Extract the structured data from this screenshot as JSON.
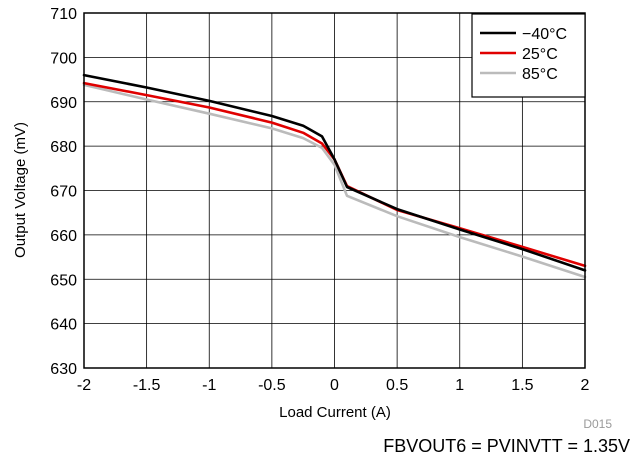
{
  "chart_data": {
    "type": "line",
    "xlabel": "Load Current (A)",
    "ylabel": "Output Voltage (mV)",
    "xlim": [
      -2,
      2
    ],
    "ylim": [
      630,
      710
    ],
    "xticks": [
      -2,
      -1.5,
      -1,
      -0.5,
      0,
      0.5,
      1,
      1.5,
      2
    ],
    "yticks": [
      630,
      640,
      650,
      660,
      670,
      680,
      690,
      700,
      710
    ],
    "xtick_labels": [
      "-2",
      "-1.5",
      "-1",
      "-0.5",
      "0",
      "0.5",
      "1",
      "1.5",
      "2"
    ],
    "ytick_labels": [
      "630",
      "640",
      "650",
      "660",
      "670",
      "680",
      "690",
      "700",
      "710"
    ],
    "grid": true,
    "legend_position": "top-right",
    "series": [
      {
        "name": "−40°C",
        "color": "#000000",
        "x": [
          -2,
          -1.5,
          -1,
          -0.5,
          -0.25,
          -0.1,
          0,
          0.1,
          0.5,
          1,
          1.5,
          2
        ],
        "y": [
          696,
          693.2,
          690.2,
          686.8,
          684.6,
          682.2,
          677,
          670.8,
          665.8,
          661.2,
          656.8,
          652
        ]
      },
      {
        "name": "25°C",
        "color": "#e00000",
        "x": [
          -2,
          -1.5,
          -1,
          -0.5,
          -0.25,
          -0.1,
          0,
          0.1,
          0.5,
          1,
          1.5,
          2
        ],
        "y": [
          694.2,
          691.5,
          688.7,
          685.3,
          683,
          680.6,
          677,
          671,
          665.6,
          661.5,
          657.3,
          653
        ]
      },
      {
        "name": "85°C",
        "color": "#bbbbbb",
        "x": [
          -2,
          -1.5,
          -1,
          -0.5,
          -0.25,
          -0.1,
          0,
          0.1,
          0.5,
          1,
          1.5,
          2
        ],
        "y": [
          693.8,
          690.5,
          687.3,
          684,
          681.8,
          679.6,
          675.8,
          668.8,
          664.2,
          659.5,
          655.1,
          650.5
        ]
      }
    ]
  },
  "figure_code": "D015",
  "condition_text": "FBVOUT6 = PVINVTT = 1.35V"
}
